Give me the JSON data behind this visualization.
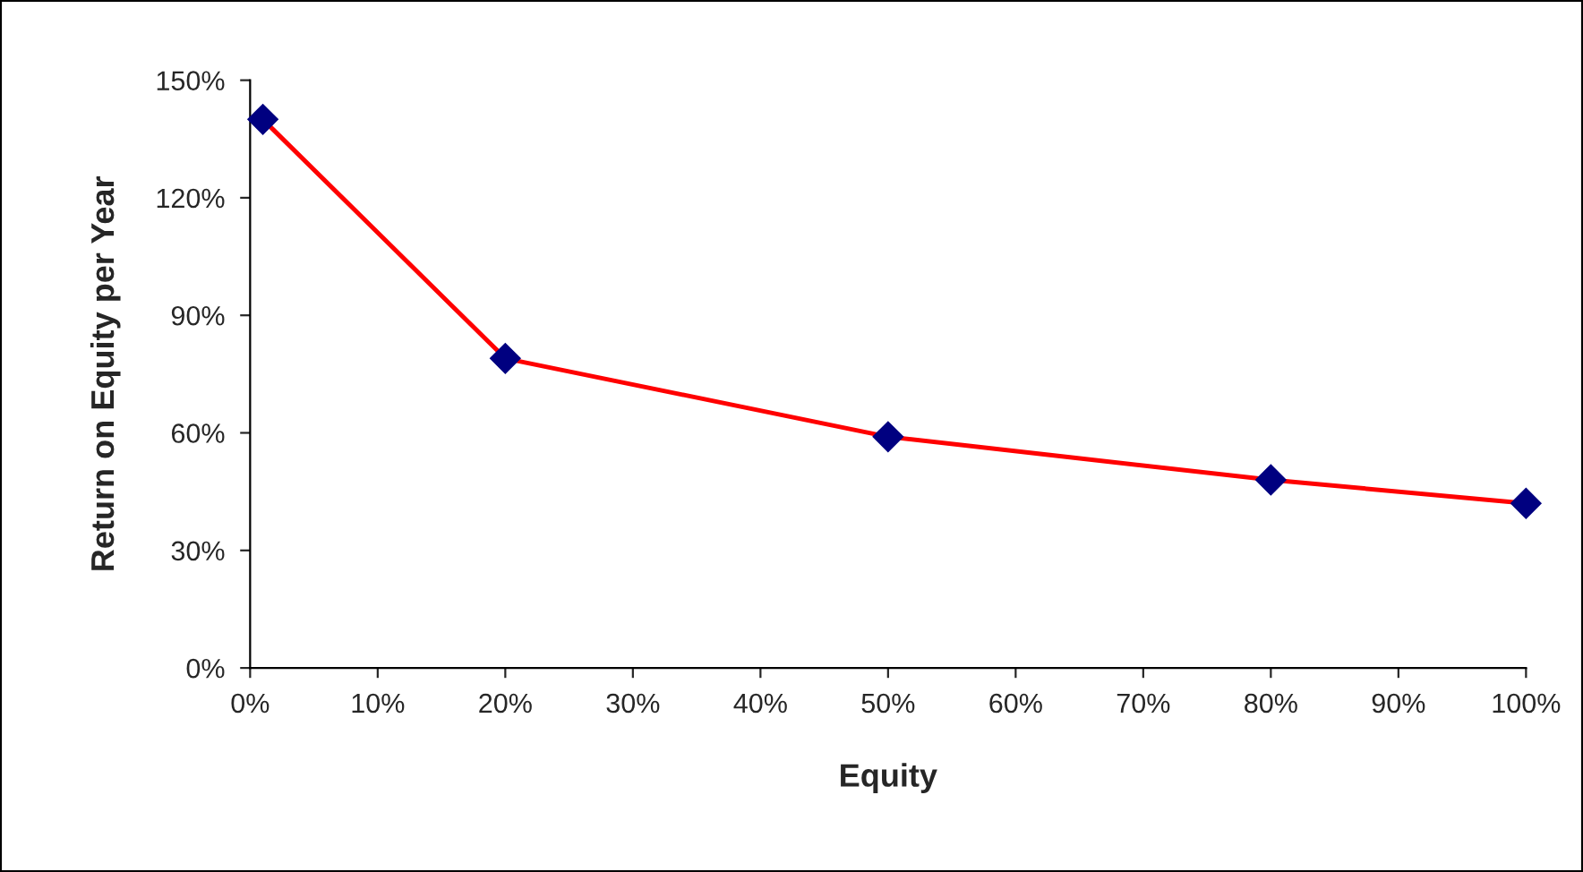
{
  "chart_data": {
    "type": "line",
    "xlabel": "Equity",
    "ylabel": "Return on Equity per Year",
    "x": [
      1,
      20,
      50,
      80,
      100
    ],
    "series": [
      {
        "color": "#ff0000",
        "values": [
          140,
          79,
          59,
          48,
          42
        ]
      }
    ],
    "marker": "diamond",
    "line_style": "solid",
    "grid": false,
    "legend": false,
    "xlim": [
      0,
      100
    ],
    "ylim": [
      0,
      150
    ],
    "xticks": [
      {
        "value": 0,
        "label": "0%"
      },
      {
        "value": 10,
        "label": "10%"
      },
      {
        "value": 20,
        "label": "20%"
      },
      {
        "value": 30,
        "label": "30%"
      },
      {
        "value": 40,
        "label": "40%"
      },
      {
        "value": 50,
        "label": "50%"
      },
      {
        "value": 60,
        "label": "60%"
      },
      {
        "value": 70,
        "label": "70%"
      },
      {
        "value": 80,
        "label": "80%"
      },
      {
        "value": 90,
        "label": "90%"
      },
      {
        "value": 100,
        "label": "100%"
      }
    ],
    "yticks": [
      {
        "value": 0,
        "label": "0%"
      },
      {
        "value": 30,
        "label": "30%"
      },
      {
        "value": 60,
        "label": "60%"
      },
      {
        "value": 90,
        "label": "90%"
      },
      {
        "value": 120,
        "label": "120%"
      },
      {
        "value": 150,
        "label": "150%"
      }
    ]
  }
}
